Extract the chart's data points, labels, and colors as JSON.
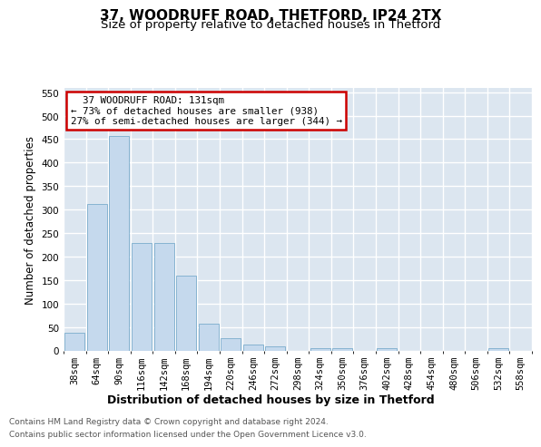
{
  "title": "37, WOODRUFF ROAD, THETFORD, IP24 2TX",
  "subtitle": "Size of property relative to detached houses in Thetford",
  "xlabel": "Distribution of detached houses by size in Thetford",
  "ylabel": "Number of detached properties",
  "footer_line1": "Contains HM Land Registry data © Crown copyright and database right 2024.",
  "footer_line2": "Contains public sector information licensed under the Open Government Licence v3.0.",
  "categories": [
    "38sqm",
    "64sqm",
    "90sqm",
    "116sqm",
    "142sqm",
    "168sqm",
    "194sqm",
    "220sqm",
    "246sqm",
    "272sqm",
    "298sqm",
    "324sqm",
    "350sqm",
    "376sqm",
    "402sqm",
    "428sqm",
    "454sqm",
    "480sqm",
    "506sqm",
    "532sqm",
    "558sqm"
  ],
  "values": [
    38,
    311,
    456,
    229,
    229,
    159,
    57,
    26,
    12,
    9,
    0,
    5,
    5,
    0,
    4,
    0,
    0,
    0,
    0,
    4,
    0
  ],
  "bar_color": "#c5d9ed",
  "bar_edge_color": "#7aaccc",
  "annotation_text": "  37 WOODRUFF ROAD: 131sqm\n← 73% of detached houses are smaller (938)\n27% of semi-detached houses are larger (344) →",
  "annotation_box_facecolor": "#ffffff",
  "annotation_box_edgecolor": "#cc0000",
  "ylim": [
    0,
    560
  ],
  "yticks": [
    0,
    50,
    100,
    150,
    200,
    250,
    300,
    350,
    400,
    450,
    500,
    550
  ],
  "plot_bg_color": "#dce6f0",
  "fig_bg_color": "#ffffff",
  "grid_color": "#ffffff",
  "title_fontsize": 11,
  "subtitle_fontsize": 9.5,
  "xlabel_fontsize": 9,
  "ylabel_fontsize": 8.5,
  "tick_fontsize": 7.5,
  "footer_fontsize": 6.5,
  "footer_color": "#555555"
}
